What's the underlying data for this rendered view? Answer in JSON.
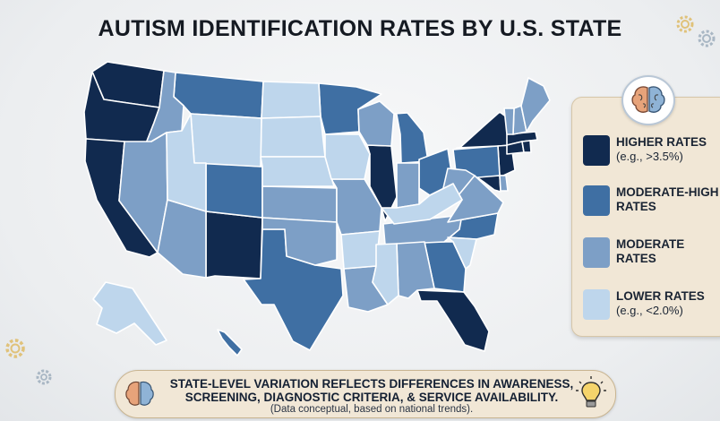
{
  "title": "AUTISM IDENTIFICATION RATES BY U.S. STATE",
  "colors": {
    "higher": "#112a4f",
    "moderate_high": "#3f6fa3",
    "moderate": "#7d9fc6",
    "lower": "#bed6ec",
    "state_border": "#ffffff"
  },
  "legend": {
    "items": [
      {
        "key": "higher",
        "label": "HIGHER RATES",
        "note": "(e.g., >3.5%)",
        "color": "#112a4f"
      },
      {
        "key": "moderate_high",
        "label": "MODERATE-HIGH\nRATES",
        "note": "",
        "color": "#3f6fa3"
      },
      {
        "key": "moderate",
        "label": "MODERATE\nRATES",
        "note": "",
        "color": "#7d9fc6"
      },
      {
        "key": "lower",
        "label": "LOWER RATES",
        "note": "(e.g., <2.0%)",
        "color": "#bed6ec"
      }
    ]
  },
  "states": {
    "WA": "higher",
    "OR": "higher",
    "CA": "higher",
    "NM": "higher",
    "IL": "higher",
    "NY": "higher",
    "NJ": "higher",
    "FL": "higher",
    "MA": "higher",
    "CT": "higher",
    "RI": "higher",
    "MD": "higher",
    "MT": "moderate_high",
    "MN": "moderate_high",
    "CO": "moderate_high",
    "TX": "moderate_high",
    "MI": "moderate_high",
    "OH": "moderate_high",
    "GA": "moderate_high",
    "NC": "moderate_high",
    "PA": "moderate_high",
    "HI": "moderate_high",
    "ID": "moderate",
    "NV": "moderate",
    "AZ": "moderate",
    "KS": "moderate",
    "OK": "moderate",
    "MO": "moderate",
    "WI": "moderate",
    "IN": "moderate",
    "TN": "moderate",
    "LA": "moderate",
    "AL": "moderate",
    "VA": "moderate",
    "NH": "moderate",
    "ME": "moderate",
    "VT": "moderate",
    "DE": "moderate",
    "WV": "moderate",
    "ND": "lower",
    "SD": "lower",
    "WY": "lower",
    "UT": "lower",
    "NE": "lower",
    "IA": "lower",
    "AR": "lower",
    "MS": "lower",
    "KY": "lower",
    "SC": "lower",
    "AK": "lower"
  },
  "footer": {
    "line1": "STATE-LEVEL VARIATION REFLECTS DIFFERENCES IN AWARENESS, SCREENING, DIAGNOSTIC CRITERIA, & SERVICE AVAILABILITY.",
    "line2": "(Data conceptual, based on national trends).",
    "icons": [
      "brain-icon",
      "lightbulb-icon"
    ]
  },
  "decor_icons": [
    "gear-icon",
    "brain-icon"
  ]
}
